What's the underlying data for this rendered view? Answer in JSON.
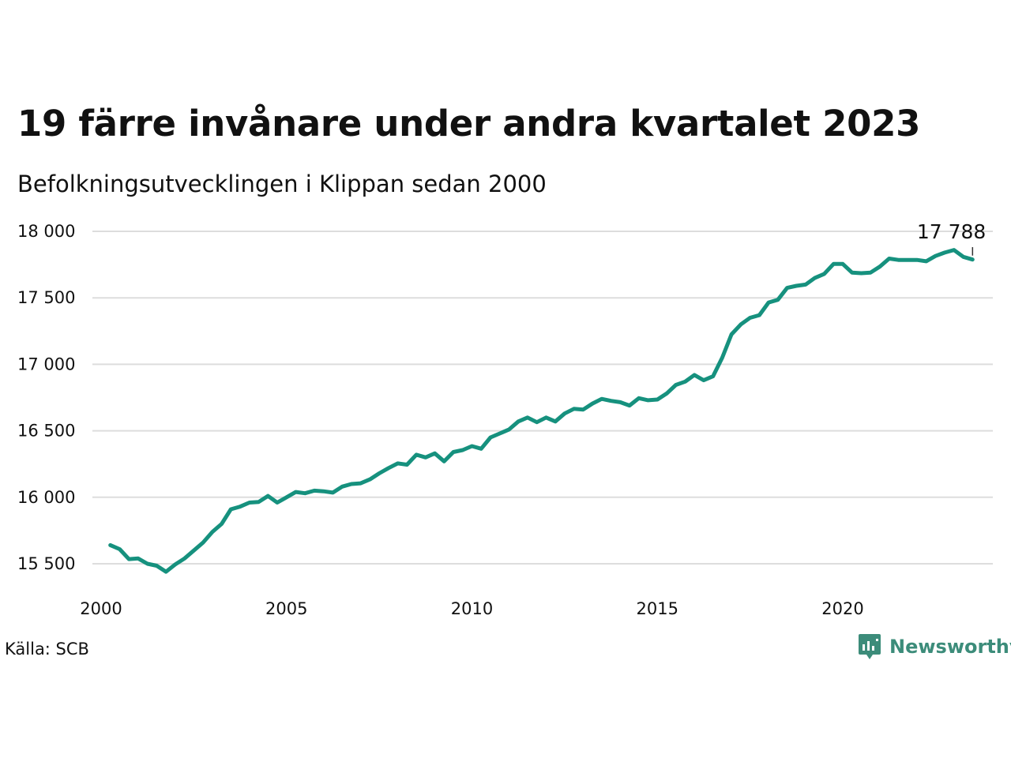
{
  "header": {
    "title": "19 färre invånare under andra kvartalet 2023",
    "subtitle": "Befolkningsutvecklingen i Klippan sedan 2000"
  },
  "footer": {
    "source": "Källa: SCB",
    "brand": "Newsworthy"
  },
  "colors": {
    "line": "#16917e",
    "grid": "#dddddd",
    "brand": "#3c8c7a"
  },
  "chart_data": {
    "type": "line",
    "title": "19 färre invånare under andra kvartalet 2023",
    "subtitle": "Befolkningsutvecklingen i Klippan sedan 2000",
    "xlabel": "",
    "ylabel": "",
    "grid": true,
    "xlim": [
      2000,
      2024.5
    ],
    "ylim": [
      15300,
      18100
    ],
    "x_ticks": [
      2000,
      2005,
      2010,
      2015,
      2020
    ],
    "x_tick_labels": [
      "2000",
      "2005",
      "2010",
      "2015",
      "2020"
    ],
    "y_ticks": [
      15500,
      16000,
      16500,
      17000,
      17500,
      18000
    ],
    "y_tick_labels": [
      "15 500",
      "16 000",
      "16 500",
      "17 000",
      "17 500",
      "18 000"
    ],
    "end_label": "17 788",
    "series": [
      {
        "x": [
          2000.25,
          2000.5,
          2000.75,
          2001.0,
          2001.25,
          2001.5,
          2001.75,
          2002.0,
          2002.25,
          2002.5,
          2002.75,
          2003.0,
          2003.25,
          2003.5,
          2003.75,
          2004.0,
          2004.25,
          2004.5,
          2004.75,
          2005.0,
          2005.25,
          2005.5,
          2005.75,
          2006.0,
          2006.25,
          2006.5,
          2006.75,
          2007.0,
          2007.25,
          2007.5,
          2007.75,
          2008.0,
          2008.25,
          2008.5,
          2008.75,
          2009.0,
          2009.25,
          2009.5,
          2009.75,
          2010.0,
          2010.25,
          2010.5,
          2010.75,
          2011.0,
          2011.25,
          2011.5,
          2011.75,
          2012.0,
          2012.25,
          2012.5,
          2012.75,
          2013.0,
          2013.25,
          2013.5,
          2013.75,
          2014.0,
          2014.25,
          2014.5,
          2014.75,
          2015.0,
          2015.25,
          2015.5,
          2015.75,
          2016.0,
          2016.25,
          2016.5,
          2016.75,
          2017.0,
          2017.25,
          2017.5,
          2017.75,
          2018.0,
          2018.25,
          2018.5,
          2018.75,
          2019.0,
          2019.25,
          2019.5,
          2019.75,
          2020.0,
          2020.25,
          2020.5,
          2020.75,
          2021.0,
          2021.25,
          2021.5,
          2021.75,
          2022.0,
          2022.25,
          2022.5,
          2022.75,
          2023.0,
          2023.25,
          2023.5
        ],
        "values": [
          15640,
          15610,
          15535,
          15540,
          15500,
          15485,
          15440,
          15495,
          15540,
          15600,
          15660,
          15740,
          15800,
          15910,
          15930,
          15960,
          15965,
          16010,
          15960,
          16000,
          16040,
          16030,
          16050,
          16045,
          16035,
          16080,
          16100,
          16105,
          16135,
          16180,
          16220,
          16255,
          16245,
          16320,
          16300,
          16330,
          16270,
          16340,
          16355,
          16385,
          16365,
          16450,
          16480,
          16510,
          16570,
          16600,
          16565,
          16600,
          16570,
          16630,
          16665,
          16660,
          16705,
          16740,
          16725,
          16715,
          16690,
          16745,
          16730,
          16735,
          16780,
          16845,
          16870,
          16920,
          16880,
          16910,
          17050,
          17225,
          17300,
          17350,
          17370,
          17465,
          17485,
          17575,
          17590,
          17600,
          17650,
          17680,
          17755,
          17755,
          17690,
          17685,
          17690,
          17735,
          17795,
          17785,
          17785,
          17785,
          17775,
          17815,
          17840,
          17860,
          17808,
          17788
        ]
      }
    ]
  }
}
